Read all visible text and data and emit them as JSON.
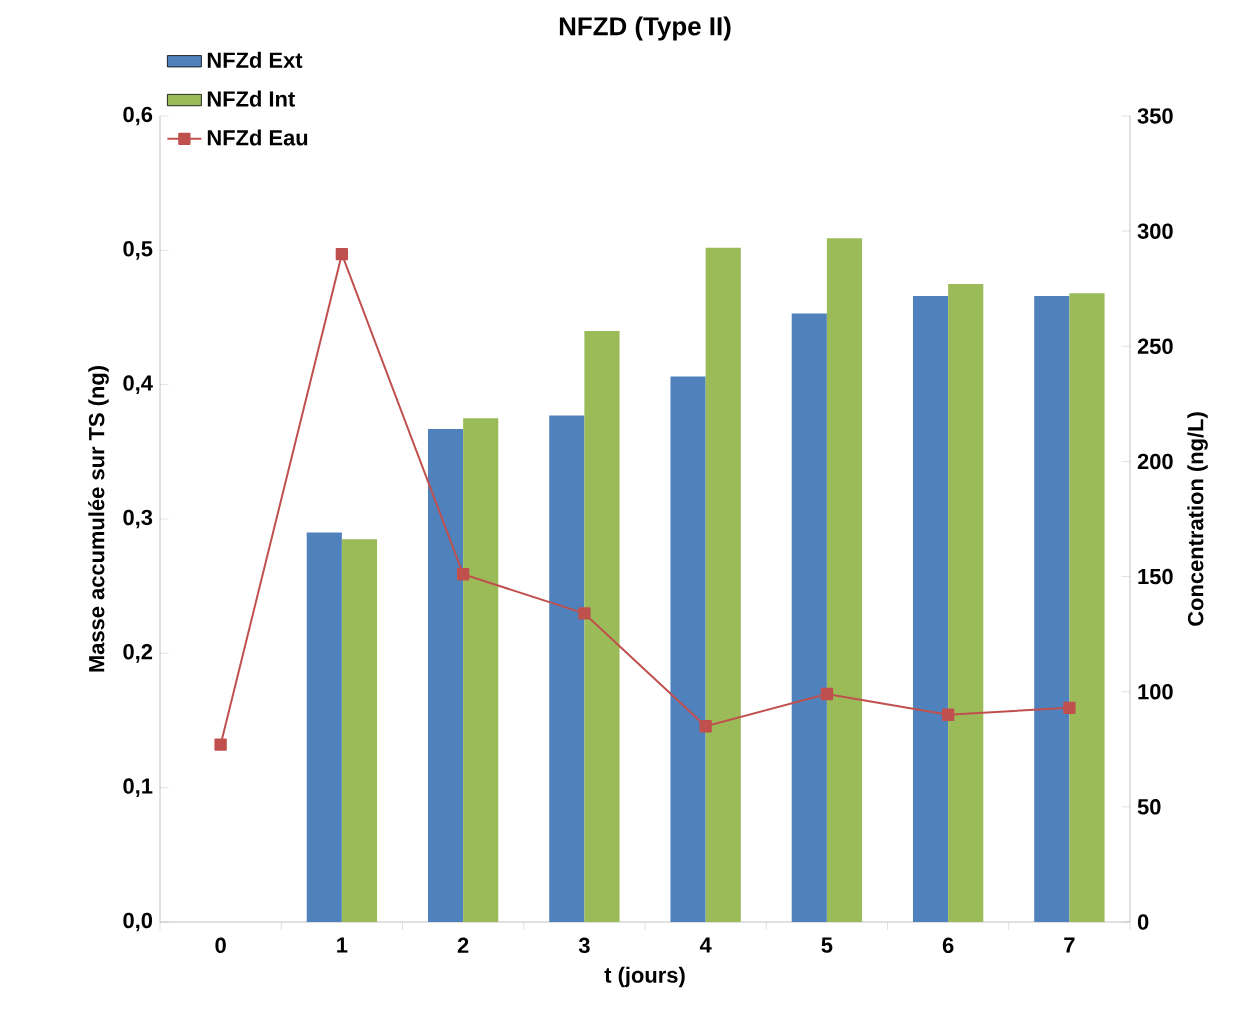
{
  "chart_data": {
    "type": "bar",
    "title": "NFZD (Type II)",
    "xlabel": "t (jours)",
    "ylabel": "Masse accumulée sur TS (ng)",
    "y2label": "Concentration (ng/L)",
    "categories": [
      "0",
      "1",
      "2",
      "3",
      "4",
      "5",
      "6",
      "7"
    ],
    "series": [
      {
        "name": "NFZd Ext",
        "color": "#4f81bd",
        "values": [
          null,
          0.29,
          0.367,
          0.377,
          0.406,
          0.453,
          0.466,
          0.466
        ]
      },
      {
        "name": "NFZd Int",
        "color": "#9bbb59",
        "values": [
          null,
          0.285,
          0.375,
          0.44,
          0.502,
          0.509,
          0.475,
          0.468
        ]
      },
      {
        "name": "NFZd Eau",
        "type": "line",
        "axis": "y2",
        "marker": "square",
        "color": "#c0504d",
        "values": [
          77,
          290,
          151,
          134,
          85,
          99,
          90,
          93
        ]
      }
    ],
    "ylim": [
      0,
      0.6
    ],
    "yticks": [
      {
        "value": 0,
        "label": "0,0"
      },
      {
        "value": 0.1,
        "label": "0,1"
      },
      {
        "value": 0.2,
        "label": "0,2"
      },
      {
        "value": 0.3,
        "label": "0,3"
      },
      {
        "value": 0.4,
        "label": "0,4"
      },
      {
        "value": 0.5,
        "label": "0,5"
      },
      {
        "value": 0.6,
        "label": "0,6"
      }
    ],
    "y2lim": [
      0,
      350
    ],
    "y2ticks": [
      0,
      50,
      100,
      150,
      200,
      250,
      300,
      350
    ],
    "legend": "top left"
  }
}
